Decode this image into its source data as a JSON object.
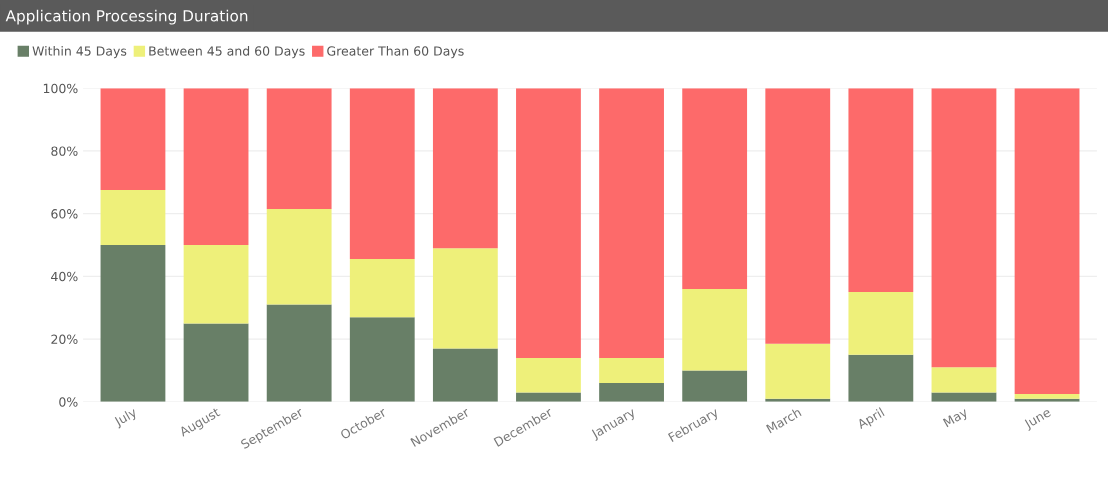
{
  "chart_data": {
    "type": "bar",
    "stacked": true,
    "title": "Application Processing Duration",
    "categories": [
      "July",
      "August",
      "September",
      "October",
      "November",
      "December",
      "January",
      "February",
      "March",
      "April",
      "May",
      "June"
    ],
    "series": [
      {
        "name": "Within 45 Days",
        "color": "#687f67",
        "values": [
          50,
          25,
          31,
          27,
          17,
          3,
          6,
          10,
          1,
          15,
          3,
          1
        ]
      },
      {
        "name": "Between 45 and 60 Days",
        "color": "#eef07a",
        "values": [
          17.5,
          25,
          30.5,
          18.5,
          32,
          11,
          8,
          26,
          17.5,
          20,
          8,
          1.5
        ]
      },
      {
        "name": "Greater Than 60 Days",
        "color": "#fd6a6a",
        "values": [
          32.5,
          50,
          38.5,
          54.5,
          51,
          86,
          86,
          64,
          81.5,
          65,
          89,
          97.5
        ]
      }
    ],
    "ylim": [
      0,
      100
    ],
    "yticks": [
      {
        "value": 0,
        "label": "0%"
      },
      {
        "value": 20,
        "label": "20%"
      },
      {
        "value": 40,
        "label": "40%"
      },
      {
        "value": 60,
        "label": "60%"
      },
      {
        "value": 80,
        "label": "80%"
      },
      {
        "value": 100,
        "label": "100%"
      }
    ],
    "grid": "y",
    "legend": "top left"
  }
}
